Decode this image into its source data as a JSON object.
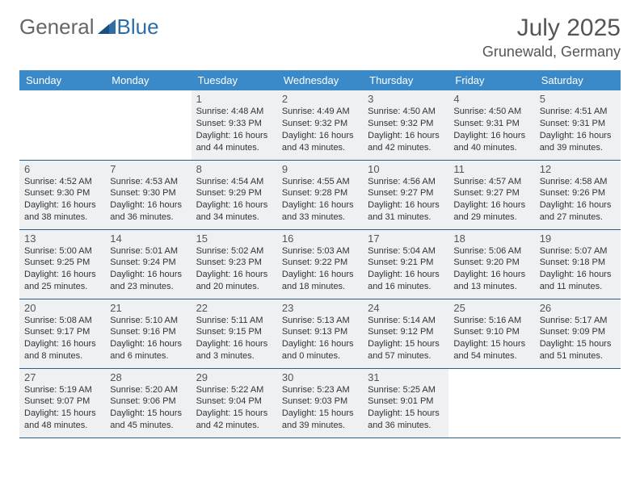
{
  "brand": {
    "part1": "General",
    "part2": "Blue"
  },
  "title": "July 2025",
  "location": "Grunewald, Germany",
  "colors": {
    "header_bg": "#3a8ac9",
    "border": "#2e5f8a",
    "shaded": "#eef0f2",
    "text": "#333333"
  },
  "day_headers": [
    "Sunday",
    "Monday",
    "Tuesday",
    "Wednesday",
    "Thursday",
    "Friday",
    "Saturday"
  ],
  "weeks": [
    [
      {
        "empty": true
      },
      {
        "empty": true
      },
      {
        "n": "1",
        "sr": "Sunrise: 4:48 AM",
        "ss": "Sunset: 9:33 PM",
        "dl": "Daylight: 16 hours and 44 minutes."
      },
      {
        "n": "2",
        "sr": "Sunrise: 4:49 AM",
        "ss": "Sunset: 9:32 PM",
        "dl": "Daylight: 16 hours and 43 minutes."
      },
      {
        "n": "3",
        "sr": "Sunrise: 4:50 AM",
        "ss": "Sunset: 9:32 PM",
        "dl": "Daylight: 16 hours and 42 minutes."
      },
      {
        "n": "4",
        "sr": "Sunrise: 4:50 AM",
        "ss": "Sunset: 9:31 PM",
        "dl": "Daylight: 16 hours and 40 minutes."
      },
      {
        "n": "5",
        "sr": "Sunrise: 4:51 AM",
        "ss": "Sunset: 9:31 PM",
        "dl": "Daylight: 16 hours and 39 minutes."
      }
    ],
    [
      {
        "n": "6",
        "sr": "Sunrise: 4:52 AM",
        "ss": "Sunset: 9:30 PM",
        "dl": "Daylight: 16 hours and 38 minutes."
      },
      {
        "n": "7",
        "sr": "Sunrise: 4:53 AM",
        "ss": "Sunset: 9:30 PM",
        "dl": "Daylight: 16 hours and 36 minutes."
      },
      {
        "n": "8",
        "sr": "Sunrise: 4:54 AM",
        "ss": "Sunset: 9:29 PM",
        "dl": "Daylight: 16 hours and 34 minutes."
      },
      {
        "n": "9",
        "sr": "Sunrise: 4:55 AM",
        "ss": "Sunset: 9:28 PM",
        "dl": "Daylight: 16 hours and 33 minutes."
      },
      {
        "n": "10",
        "sr": "Sunrise: 4:56 AM",
        "ss": "Sunset: 9:27 PM",
        "dl": "Daylight: 16 hours and 31 minutes."
      },
      {
        "n": "11",
        "sr": "Sunrise: 4:57 AM",
        "ss": "Sunset: 9:27 PM",
        "dl": "Daylight: 16 hours and 29 minutes."
      },
      {
        "n": "12",
        "sr": "Sunrise: 4:58 AM",
        "ss": "Sunset: 9:26 PM",
        "dl": "Daylight: 16 hours and 27 minutes."
      }
    ],
    [
      {
        "n": "13",
        "sr": "Sunrise: 5:00 AM",
        "ss": "Sunset: 9:25 PM",
        "dl": "Daylight: 16 hours and 25 minutes."
      },
      {
        "n": "14",
        "sr": "Sunrise: 5:01 AM",
        "ss": "Sunset: 9:24 PM",
        "dl": "Daylight: 16 hours and 23 minutes."
      },
      {
        "n": "15",
        "sr": "Sunrise: 5:02 AM",
        "ss": "Sunset: 9:23 PM",
        "dl": "Daylight: 16 hours and 20 minutes."
      },
      {
        "n": "16",
        "sr": "Sunrise: 5:03 AM",
        "ss": "Sunset: 9:22 PM",
        "dl": "Daylight: 16 hours and 18 minutes."
      },
      {
        "n": "17",
        "sr": "Sunrise: 5:04 AM",
        "ss": "Sunset: 9:21 PM",
        "dl": "Daylight: 16 hours and 16 minutes."
      },
      {
        "n": "18",
        "sr": "Sunrise: 5:06 AM",
        "ss": "Sunset: 9:20 PM",
        "dl": "Daylight: 16 hours and 13 minutes."
      },
      {
        "n": "19",
        "sr": "Sunrise: 5:07 AM",
        "ss": "Sunset: 9:18 PM",
        "dl": "Daylight: 16 hours and 11 minutes."
      }
    ],
    [
      {
        "n": "20",
        "sr": "Sunrise: 5:08 AM",
        "ss": "Sunset: 9:17 PM",
        "dl": "Daylight: 16 hours and 8 minutes."
      },
      {
        "n": "21",
        "sr": "Sunrise: 5:10 AM",
        "ss": "Sunset: 9:16 PM",
        "dl": "Daylight: 16 hours and 6 minutes."
      },
      {
        "n": "22",
        "sr": "Sunrise: 5:11 AM",
        "ss": "Sunset: 9:15 PM",
        "dl": "Daylight: 16 hours and 3 minutes."
      },
      {
        "n": "23",
        "sr": "Sunrise: 5:13 AM",
        "ss": "Sunset: 9:13 PM",
        "dl": "Daylight: 16 hours and 0 minutes."
      },
      {
        "n": "24",
        "sr": "Sunrise: 5:14 AM",
        "ss": "Sunset: 9:12 PM",
        "dl": "Daylight: 15 hours and 57 minutes."
      },
      {
        "n": "25",
        "sr": "Sunrise: 5:16 AM",
        "ss": "Sunset: 9:10 PM",
        "dl": "Daylight: 15 hours and 54 minutes."
      },
      {
        "n": "26",
        "sr": "Sunrise: 5:17 AM",
        "ss": "Sunset: 9:09 PM",
        "dl": "Daylight: 15 hours and 51 minutes."
      }
    ],
    [
      {
        "n": "27",
        "sr": "Sunrise: 5:19 AM",
        "ss": "Sunset: 9:07 PM",
        "dl": "Daylight: 15 hours and 48 minutes."
      },
      {
        "n": "28",
        "sr": "Sunrise: 5:20 AM",
        "ss": "Sunset: 9:06 PM",
        "dl": "Daylight: 15 hours and 45 minutes."
      },
      {
        "n": "29",
        "sr": "Sunrise: 5:22 AM",
        "ss": "Sunset: 9:04 PM",
        "dl": "Daylight: 15 hours and 42 minutes."
      },
      {
        "n": "30",
        "sr": "Sunrise: 5:23 AM",
        "ss": "Sunset: 9:03 PM",
        "dl": "Daylight: 15 hours and 39 minutes."
      },
      {
        "n": "31",
        "sr": "Sunrise: 5:25 AM",
        "ss": "Sunset: 9:01 PM",
        "dl": "Daylight: 15 hours and 36 minutes."
      },
      {
        "empty": true
      },
      {
        "empty": true
      }
    ]
  ]
}
